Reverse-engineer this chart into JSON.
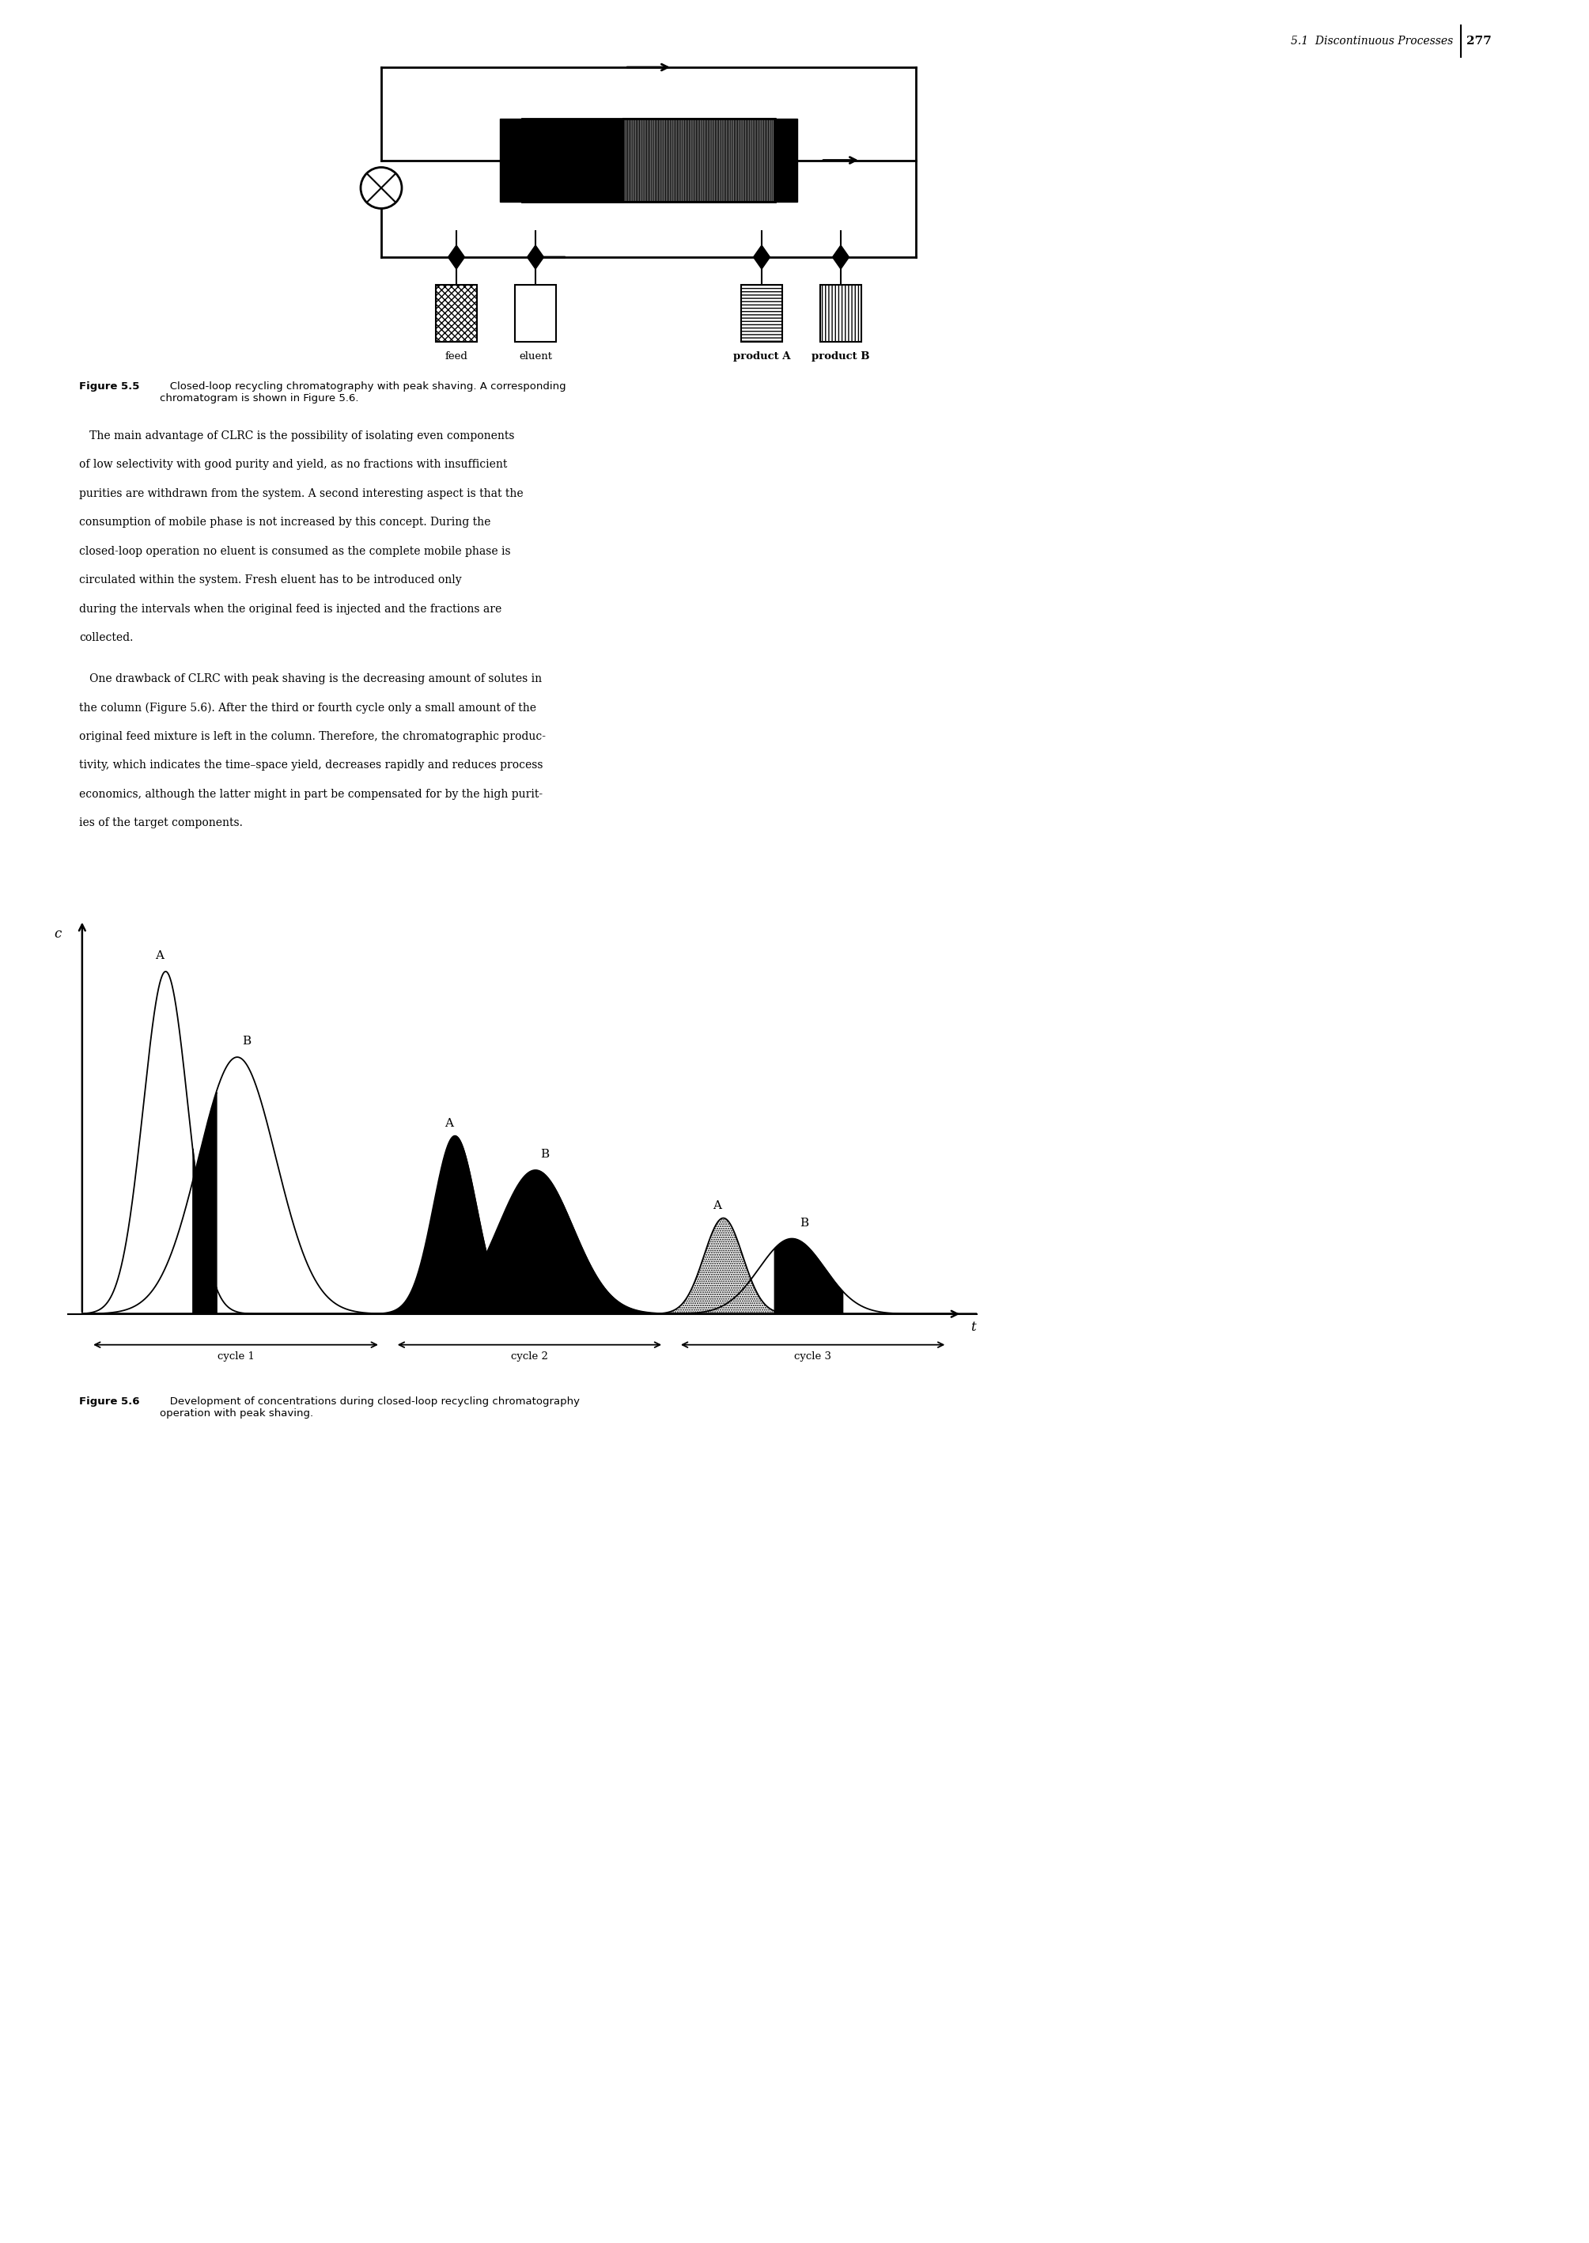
{
  "page_width": 20.09,
  "page_height": 28.35,
  "bg_color": "#ffffff",
  "header_text": "5.1  Discontinuous Processes",
  "header_page": "277",
  "figure55_caption_bold": "Figure 5.5",
  "figure55_caption_rest": "   Closed-loop recycling chromatography with peak shaving. A corresponding\nchromatogram is shown in Figure 5.6.",
  "figure56_caption_bold": "Figure 5.6",
  "figure56_caption_rest": "   Development of concentrations during closed-loop recycling chromatography\noperation with peak shaving.",
  "body_text_para1": [
    "   The main advantage of CLRC is the possibility of isolating even components",
    "of low selectivity with good purity and yield, as no fractions with insufficient",
    "purities are withdrawn from the system. A second interesting aspect is that the",
    "consumption of mobile phase is not increased by this concept. During the",
    "closed-loop operation no eluent is consumed as the complete mobile phase is",
    "circulated within the system. Fresh eluent has to be introduced only",
    "during the intervals when the original feed is injected and the fractions are",
    "collected."
  ],
  "body_text_para2": [
    "   One drawback of CLRC with peak shaving is the decreasing amount of solutes in",
    "the column (Figure 5.6). After the third or fourth cycle only a small amount of the",
    "original feed mixture is left in the column. Therefore, the chromatographic produc-",
    "tivity, which indicates the time–space yield, decreases rapidly and reduces process",
    "economics, although the latter might in part be compensated for by the high purit-",
    "ies of the target components."
  ],
  "container_labels": [
    "feed",
    "eluent",
    "product A",
    "product B"
  ],
  "cycle_labels": [
    "cycle 1",
    "cycle 2",
    "cycle 3"
  ]
}
